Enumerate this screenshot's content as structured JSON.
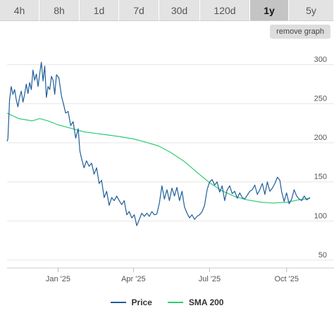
{
  "timeframes": [
    "4h",
    "8h",
    "1d",
    "7d",
    "30d",
    "120d",
    "1y",
    "5y"
  ],
  "active_timeframe": "1y",
  "remove_graph_label": "remove graph",
  "colors": {
    "price": "#1f5d9a",
    "sma": "#2ecc71",
    "grid": "#e6e6e6",
    "active_tab": "#c4c4c4"
  },
  "legend": [
    {
      "label": "Price",
      "color": "#1f5d9a"
    },
    {
      "label": "SMA 200",
      "color": "#2ecc71"
    }
  ],
  "chart_data": {
    "type": "line",
    "xlim": [
      "2024-11-01",
      "2025-10-29"
    ],
    "ylim": [
      40,
      325
    ],
    "yticks": [
      300,
      250,
      200,
      150,
      100,
      50
    ],
    "xticks": [
      {
        "date": "2025-01-01",
        "label": "Jan '25"
      },
      {
        "date": "2025-04-01",
        "label": "Apr '25"
      },
      {
        "date": "2025-07-01",
        "label": "Jul '25"
      },
      {
        "date": "2025-10-01",
        "label": "Oct '25"
      }
    ],
    "grid": true,
    "legend_position": "bottom",
    "series": [
      {
        "name": "Price",
        "points": [
          [
            "2024-11-01",
            202
          ],
          [
            "2024-11-02",
            205
          ],
          [
            "2024-11-04",
            255
          ],
          [
            "2024-11-06",
            272
          ],
          [
            "2024-11-08",
            262
          ],
          [
            "2024-11-10",
            268
          ],
          [
            "2024-11-12",
            255
          ],
          [
            "2024-11-14",
            246
          ],
          [
            "2024-11-16",
            258
          ],
          [
            "2024-11-18",
            266
          ],
          [
            "2024-11-20",
            252
          ],
          [
            "2024-11-22",
            262
          ],
          [
            "2024-11-24",
            275
          ],
          [
            "2024-11-26",
            263
          ],
          [
            "2024-11-28",
            277
          ],
          [
            "2024-11-30",
            268
          ],
          [
            "2024-12-02",
            293
          ],
          [
            "2024-12-04",
            280
          ],
          [
            "2024-12-06",
            288
          ],
          [
            "2024-12-08",
            272
          ],
          [
            "2024-12-10",
            288
          ],
          [
            "2024-12-12",
            303
          ],
          [
            "2024-12-14",
            279
          ],
          [
            "2024-12-16",
            298
          ],
          [
            "2024-12-18",
            258
          ],
          [
            "2024-12-20",
            272
          ],
          [
            "2024-12-22",
            268
          ],
          [
            "2024-12-24",
            285
          ],
          [
            "2024-12-26",
            280
          ],
          [
            "2024-12-28",
            262
          ],
          [
            "2024-12-30",
            287
          ],
          [
            "2025-01-02",
            283
          ],
          [
            "2025-01-05",
            260
          ],
          [
            "2025-01-08",
            247
          ],
          [
            "2025-01-10",
            238
          ],
          [
            "2025-01-13",
            240
          ],
          [
            "2025-01-16",
            222
          ],
          [
            "2025-01-19",
            227
          ],
          [
            "2025-01-22",
            206
          ],
          [
            "2025-01-25",
            218
          ],
          [
            "2025-01-27",
            190
          ],
          [
            "2025-01-29",
            180
          ],
          [
            "2025-02-01",
            168
          ],
          [
            "2025-02-04",
            177
          ],
          [
            "2025-02-07",
            170
          ],
          [
            "2025-02-10",
            174
          ],
          [
            "2025-02-13",
            160
          ],
          [
            "2025-02-16",
            168
          ],
          [
            "2025-02-19",
            148
          ],
          [
            "2025-02-22",
            152
          ],
          [
            "2025-02-25",
            130
          ],
          [
            "2025-02-28",
            138
          ],
          [
            "2025-03-03",
            120
          ],
          [
            "2025-03-06",
            130
          ],
          [
            "2025-03-09",
            126
          ],
          [
            "2025-03-12",
            132
          ],
          [
            "2025-03-15",
            126
          ],
          [
            "2025-03-18",
            121
          ],
          [
            "2025-03-21",
            126
          ],
          [
            "2025-03-24",
            108
          ],
          [
            "2025-03-27",
            112
          ],
          [
            "2025-03-30",
            104
          ],
          [
            "2025-04-02",
            108
          ],
          [
            "2025-04-05",
            94
          ],
          [
            "2025-04-08",
            102
          ],
          [
            "2025-04-11",
            110
          ],
          [
            "2025-04-14",
            106
          ],
          [
            "2025-04-17",
            110
          ],
          [
            "2025-04-20",
            106
          ],
          [
            "2025-04-23",
            112
          ],
          [
            "2025-04-26",
            108
          ],
          [
            "2025-04-29",
            109
          ],
          [
            "2025-05-02",
            123
          ],
          [
            "2025-05-05",
            145
          ],
          [
            "2025-05-08",
            128
          ],
          [
            "2025-05-11",
            140
          ],
          [
            "2025-05-14",
            126
          ],
          [
            "2025-05-17",
            142
          ],
          [
            "2025-05-20",
            132
          ],
          [
            "2025-05-23",
            143
          ],
          [
            "2025-05-26",
            126
          ],
          [
            "2025-05-29",
            138
          ],
          [
            "2025-06-01",
            118
          ],
          [
            "2025-06-04",
            110
          ],
          [
            "2025-06-07",
            104
          ],
          [
            "2025-06-10",
            108
          ],
          [
            "2025-06-13",
            102
          ],
          [
            "2025-06-16",
            106
          ],
          [
            "2025-06-19",
            108
          ],
          [
            "2025-06-22",
            112
          ],
          [
            "2025-06-25",
            120
          ],
          [
            "2025-06-28",
            140
          ],
          [
            "2025-07-01",
            150
          ],
          [
            "2025-07-04",
            153
          ],
          [
            "2025-07-07",
            146
          ],
          [
            "2025-07-10",
            150
          ],
          [
            "2025-07-13",
            137
          ],
          [
            "2025-07-16",
            145
          ],
          [
            "2025-07-19",
            126
          ],
          [
            "2025-07-22",
            140
          ],
          [
            "2025-07-25",
            145
          ],
          [
            "2025-07-28",
            135
          ],
          [
            "2025-07-31",
            138
          ],
          [
            "2025-08-03",
            129
          ],
          [
            "2025-08-06",
            136
          ],
          [
            "2025-08-09",
            130
          ],
          [
            "2025-08-12",
            128
          ],
          [
            "2025-08-15",
            133
          ],
          [
            "2025-08-18",
            138
          ],
          [
            "2025-08-21",
            140
          ],
          [
            "2025-08-24",
            146
          ],
          [
            "2025-08-27",
            134
          ],
          [
            "2025-08-30",
            140
          ],
          [
            "2025-09-02",
            148
          ],
          [
            "2025-09-05",
            134
          ],
          [
            "2025-09-08",
            150
          ],
          [
            "2025-09-11",
            138
          ],
          [
            "2025-09-14",
            142
          ],
          [
            "2025-09-17",
            148
          ],
          [
            "2025-09-20",
            156
          ],
          [
            "2025-09-23",
            152
          ],
          [
            "2025-09-25",
            138
          ],
          [
            "2025-09-28",
            125
          ],
          [
            "2025-10-01",
            136
          ],
          [
            "2025-10-04",
            122
          ],
          [
            "2025-10-07",
            128
          ],
          [
            "2025-10-10",
            140
          ],
          [
            "2025-10-13",
            132
          ],
          [
            "2025-10-16",
            128
          ],
          [
            "2025-10-19",
            126
          ],
          [
            "2025-10-22",
            132
          ],
          [
            "2025-10-25",
            127
          ],
          [
            "2025-10-29",
            130
          ]
        ]
      },
      {
        "name": "SMA 200",
        "points": [
          [
            "2024-11-01",
            238
          ],
          [
            "2024-11-15",
            231
          ],
          [
            "2024-12-01",
            228
          ],
          [
            "2024-12-10",
            231
          ],
          [
            "2024-12-20",
            228
          ],
          [
            "2025-01-01",
            223
          ],
          [
            "2025-01-15",
            219
          ],
          [
            "2025-02-01",
            214
          ],
          [
            "2025-02-15",
            212
          ],
          [
            "2025-03-01",
            210
          ],
          [
            "2025-03-15",
            208
          ],
          [
            "2025-04-01",
            205
          ],
          [
            "2025-04-15",
            201
          ],
          [
            "2025-05-01",
            196
          ],
          [
            "2025-05-15",
            188
          ],
          [
            "2025-06-01",
            176
          ],
          [
            "2025-06-15",
            163
          ],
          [
            "2025-07-01",
            149
          ],
          [
            "2025-07-15",
            139
          ],
          [
            "2025-08-01",
            131
          ],
          [
            "2025-08-15",
            127
          ],
          [
            "2025-09-01",
            124
          ],
          [
            "2025-09-15",
            123
          ],
          [
            "2025-10-01",
            124
          ],
          [
            "2025-10-15",
            127
          ],
          [
            "2025-10-29",
            129
          ]
        ]
      }
    ]
  }
}
